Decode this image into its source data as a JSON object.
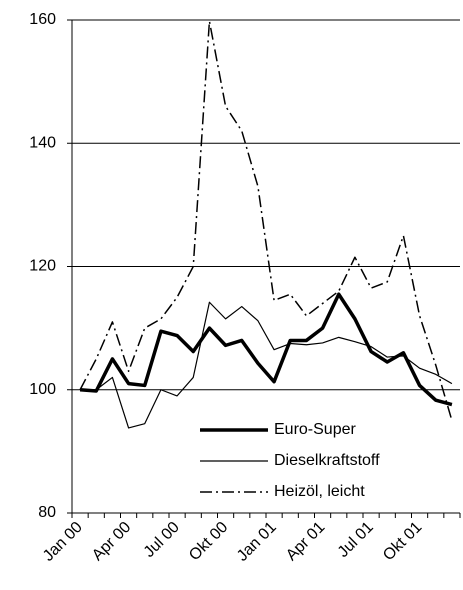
{
  "chart_data": {
    "type": "line",
    "categories": [
      "Jan 00",
      null,
      null,
      "Apr 00",
      null,
      null,
      "Jul 00",
      null,
      null,
      "Okt 00",
      null,
      null,
      "Jan 01",
      null,
      null,
      "Apr 01",
      null,
      null,
      "Jul 01",
      null,
      null,
      "Okt 01",
      null,
      null
    ],
    "series": [
      {
        "name": "Euro-Super",
        "color": "#000000",
        "line_width": 3.5,
        "line_style": "solid",
        "values": [
          100,
          99.8,
          105,
          101,
          100.7,
          109.5,
          108.8,
          106.2,
          110,
          107.2,
          108,
          104.3,
          101.3,
          108,
          108,
          110,
          115.5,
          111.5,
          106.2,
          104.5,
          106,
          100.7,
          98.3,
          97.6
        ]
      },
      {
        "name": "Dieselkraftstoff",
        "color": "#000000",
        "line_width": 1.2,
        "line_style": "solid",
        "values": [
          100,
          100,
          102,
          93.8,
          94.5,
          100,
          99,
          102,
          114.2,
          111.5,
          113.5,
          111.2,
          106.5,
          107.5,
          107.3,
          107.6,
          108.5,
          107.8,
          107,
          105.3,
          105.5,
          103.5,
          102.5,
          101
        ]
      },
      {
        "name": "Heizöl, leicht",
        "color": "#000000",
        "line_width": 1.5,
        "line_style": "dashdot",
        "values": [
          100,
          105,
          111,
          103,
          110,
          111.5,
          115,
          120,
          159.8,
          146,
          142,
          133,
          114.5,
          115.5,
          112,
          114,
          116,
          121.5,
          116.5,
          117.5,
          125,
          112,
          104,
          95
        ]
      }
    ],
    "ylim": [
      80,
      160
    ],
    "yticks": [
      80,
      100,
      120,
      140,
      160
    ],
    "grid": true,
    "legend": "lower right"
  }
}
